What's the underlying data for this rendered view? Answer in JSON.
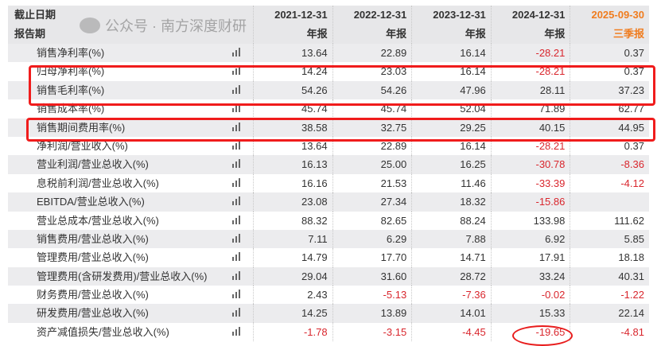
{
  "header": {
    "date_label": "截止日期",
    "period_label": "报告期",
    "columns": [
      {
        "date": "2021-12-31",
        "period": "年报"
      },
      {
        "date": "2022-12-31",
        "period": "年报"
      },
      {
        "date": "2023-12-31",
        "period": "年报"
      },
      {
        "date": "2024-12-31",
        "period": "年报"
      },
      {
        "date": "2025-09-30",
        "period": "三季报"
      }
    ]
  },
  "highlight_color": "#f07c1e",
  "negative_color": "#d9262d",
  "rows": [
    {
      "label": "销售净利率(%)",
      "values": [
        "13.64",
        "22.89",
        "16.14",
        "-28.21",
        "0.37"
      ]
    },
    {
      "label": "归母净利率(%)",
      "values": [
        "14.24",
        "23.03",
        "16.14",
        "-28.21",
        "0.37"
      ]
    },
    {
      "label": "销售毛利率(%)",
      "values": [
        "54.26",
        "54.26",
        "47.96",
        "28.11",
        "37.23"
      ]
    },
    {
      "label": "销售成本率(%)",
      "values": [
        "45.74",
        "45.74",
        "52.04",
        "71.89",
        "62.77"
      ]
    },
    {
      "label": "销售期间费用率(%)",
      "values": [
        "38.58",
        "32.75",
        "29.25",
        "40.15",
        "44.95"
      ]
    },
    {
      "label": "净利润/营业收入(%)",
      "values": [
        "13.64",
        "22.89",
        "16.14",
        "-28.21",
        "0.37"
      ]
    },
    {
      "label": "营业利润/营业总收入(%)",
      "values": [
        "16.13",
        "25.00",
        "16.25",
        "-30.78",
        "-8.36"
      ]
    },
    {
      "label": "息税前利润/营业总收入(%)",
      "values": [
        "16.16",
        "21.53",
        "11.46",
        "-33.39",
        "-4.12"
      ]
    },
    {
      "label": "EBITDA/营业总收入(%)",
      "values": [
        "23.08",
        "27.34",
        "18.32",
        "-15.86",
        ""
      ]
    },
    {
      "label": "营业总成本/营业总收入(%)",
      "values": [
        "88.32",
        "82.65",
        "88.24",
        "133.98",
        "111.62"
      ]
    },
    {
      "label": "销售费用/营业总收入(%)",
      "values": [
        "7.11",
        "6.29",
        "7.88",
        "6.92",
        "5.85"
      ]
    },
    {
      "label": "管理费用/营业总收入(%)",
      "values": [
        "14.79",
        "17.70",
        "14.71",
        "17.91",
        "18.18"
      ]
    },
    {
      "label": "管理费用(含研发费用)/营业总收入(%)",
      "values": [
        "29.04",
        "31.60",
        "28.72",
        "33.24",
        "40.31"
      ]
    },
    {
      "label": "财务费用/营业总收入(%)",
      "values": [
        "2.43",
        "-5.13",
        "-7.36",
        "-0.02",
        "-1.22"
      ]
    },
    {
      "label": "研发费用/营业总收入(%)",
      "values": [
        "14.25",
        "13.89",
        "14.01",
        "15.33",
        "22.14"
      ]
    },
    {
      "label": "资产减值损失/营业总收入(%)",
      "values": [
        "-1.78",
        "-3.15",
        "-4.45",
        "-19.65",
        "-4.81"
      ]
    }
  ],
  "watermark": "公众号 · 南方深度财研"
}
